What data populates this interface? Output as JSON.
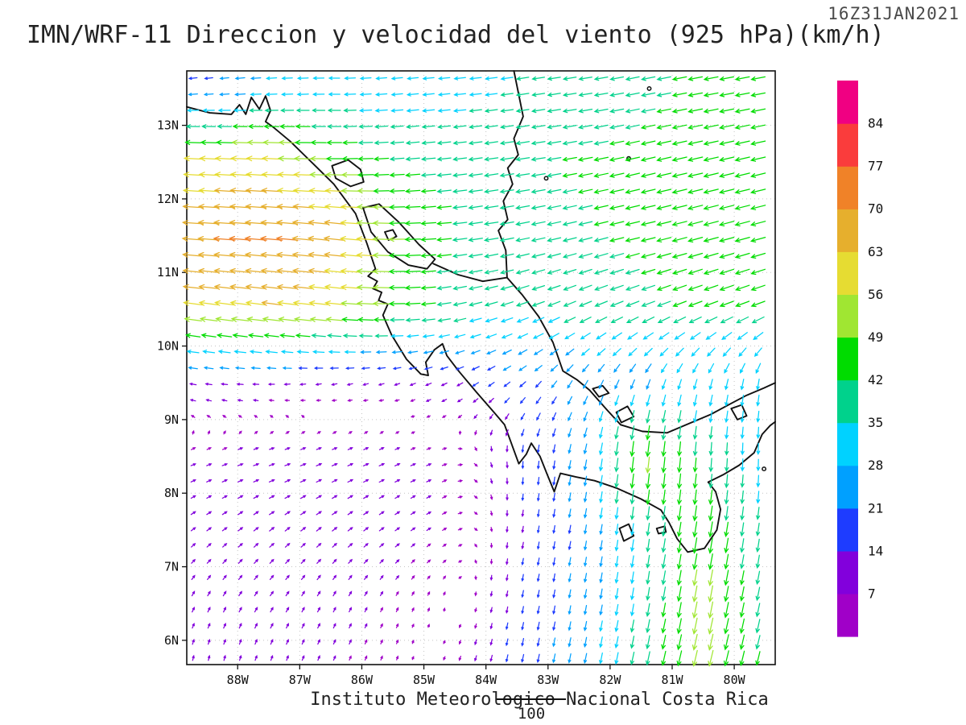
{
  "chart_data": {
    "type": "vector_field",
    "title": "IMN/WRF-11 Direccion y velocidad del viento (925 hPa)(km/h)",
    "timestamp": "16Z31JAN2021",
    "footer": "Instituto Meteorologico Nacional Costa Rica",
    "reference_label": "100",
    "units": "km/h",
    "level": "925 hPa",
    "lon_range": [
      -88.82,
      -79.34
    ],
    "lat_range": [
      5.67,
      13.74
    ],
    "x_ticks": {
      "labels": [
        "88W",
        "87W",
        "86W",
        "85W",
        "84W",
        "83W",
        "82W",
        "81W",
        "80W"
      ],
      "values": [
        -88,
        -87,
        -86,
        -85,
        -84,
        -83,
        -82,
        -81,
        -80
      ]
    },
    "y_ticks": {
      "labels": [
        "13N",
        "12N",
        "11N",
        "10N",
        "9N",
        "8N",
        "7N",
        "6N"
      ],
      "values": [
        13,
        12,
        11,
        10,
        9,
        8,
        7,
        6
      ]
    },
    "colorbar": {
      "levels": [
        7,
        14,
        21,
        28,
        35,
        42,
        49,
        56,
        63,
        70,
        77,
        84
      ],
      "colors": [
        "#a000c8",
        "#8200dc",
        "#1e3cff",
        "#00a0ff",
        "#00d2ff",
        "#00d28c",
        "#00dc00",
        "#a0e632",
        "#e6dc32",
        "#e6af2d",
        "#f08228",
        "#fa3c3c",
        "#f00082"
      ]
    },
    "grid": {
      "lons": [
        -88.5,
        -87.5,
        -86.5,
        -85.5,
        -84.5,
        -83.5,
        -82.5,
        -81.5,
        -80.5,
        -79.5
      ],
      "lats": [
        5.8,
        6.5,
        7.5,
        8.5,
        9.5,
        10.5,
        11.5,
        12.5,
        13.5
      ],
      "u": [
        [
          2,
          3,
          3,
          2,
          -2,
          -4,
          -5,
          -8,
          -12,
          -10
        ],
        [
          4,
          5,
          4,
          3,
          0,
          -3,
          -4,
          -6,
          -10,
          -8
        ],
        [
          8,
          9,
          9,
          8,
          5,
          -2,
          -4,
          -5,
          -8,
          -5
        ],
        [
          8,
          10,
          10,
          9,
          6,
          0,
          -5,
          -6,
          -3,
          0
        ],
        [
          -14,
          -12,
          -10,
          -10,
          -12,
          -15,
          -12,
          -10,
          -8,
          -5
        ],
        [
          -60,
          -62,
          -58,
          -48,
          -38,
          -35,
          -35,
          -38,
          -40,
          -40
        ],
        [
          -70,
          -72,
          -68,
          -50,
          -42,
          -40,
          -40,
          -42,
          -44,
          -44
        ],
        [
          -58,
          -60,
          -50,
          -42,
          -40,
          -40,
          -42,
          -42,
          -44,
          -44
        ],
        [
          -20,
          -28,
          -30,
          -30,
          -32,
          -35,
          -38,
          -40,
          -42,
          -42
        ]
      ],
      "v": [
        [
          8,
          8,
          7,
          5,
          -5,
          -18,
          -25,
          -38,
          -50,
          -40
        ],
        [
          8,
          8,
          8,
          6,
          2,
          -15,
          -22,
          -35,
          -52,
          -38
        ],
        [
          6,
          7,
          7,
          6,
          3,
          -12,
          -22,
          -35,
          -48,
          -35
        ],
        [
          3,
          3,
          4,
          4,
          2,
          -15,
          -25,
          -52,
          -40,
          -30
        ],
        [
          2,
          0,
          -2,
          -3,
          -6,
          -12,
          -20,
          -25,
          -28,
          -30
        ],
        [
          8,
          8,
          6,
          0,
          -8,
          -12,
          -15,
          -15,
          -15,
          -15
        ],
        [
          5,
          6,
          8,
          0,
          -5,
          -8,
          -10,
          -10,
          -12,
          -12
        ],
        [
          3,
          3,
          0,
          -3,
          -5,
          -6,
          -8,
          -10,
          -10,
          -10
        ],
        [
          -2,
          -2,
          0,
          -3,
          -3,
          -5,
          -6,
          -8,
          -8,
          -8
        ]
      ]
    },
    "coastlines": [
      {
        "closed": false,
        "points": [
          [
            -88.82,
            13.25
          ],
          [
            -88.45,
            13.17
          ],
          [
            -88.1,
            13.15
          ],
          [
            -87.97,
            13.28
          ],
          [
            -87.87,
            13.15
          ],
          [
            -87.78,
            13.38
          ],
          [
            -87.65,
            13.22
          ],
          [
            -87.55,
            13.4
          ],
          [
            -87.47,
            13.2
          ],
          [
            -87.55,
            13.05
          ],
          [
            -87.42,
            12.97
          ],
          [
            -87.15,
            12.78
          ],
          [
            -86.75,
            12.45
          ],
          [
            -86.45,
            12.2
          ],
          [
            -86.1,
            11.8
          ],
          [
            -85.92,
            11.4
          ],
          [
            -85.78,
            11.05
          ],
          [
            -85.9,
            10.95
          ],
          [
            -85.75,
            10.88
          ],
          [
            -85.82,
            10.78
          ],
          [
            -85.68,
            10.73
          ],
          [
            -85.73,
            10.62
          ],
          [
            -85.58,
            10.57
          ],
          [
            -85.66,
            10.42
          ],
          [
            -85.52,
            10.15
          ],
          [
            -85.28,
            9.82
          ],
          [
            -85.05,
            9.62
          ],
          [
            -84.93,
            9.6
          ],
          [
            -84.97,
            9.78
          ],
          [
            -84.83,
            9.95
          ],
          [
            -84.7,
            10.03
          ],
          [
            -84.63,
            9.87
          ],
          [
            -84.45,
            9.67
          ],
          [
            -84.15,
            9.37
          ],
          [
            -83.85,
            9.08
          ],
          [
            -83.7,
            8.93
          ],
          [
            -83.6,
            8.7
          ],
          [
            -83.47,
            8.4
          ],
          [
            -83.35,
            8.53
          ],
          [
            -83.27,
            8.68
          ],
          [
            -83.13,
            8.5
          ],
          [
            -83.02,
            8.27
          ],
          [
            -82.9,
            8.02
          ],
          [
            -82.8,
            8.27
          ],
          [
            -82.55,
            8.22
          ],
          [
            -82.25,
            8.17
          ],
          [
            -81.9,
            8.07
          ],
          [
            -81.5,
            7.92
          ],
          [
            -81.18,
            7.77
          ],
          [
            -81.05,
            7.6
          ],
          [
            -80.92,
            7.38
          ],
          [
            -80.75,
            7.2
          ],
          [
            -80.48,
            7.25
          ],
          [
            -80.28,
            7.5
          ],
          [
            -80.22,
            7.78
          ],
          [
            -80.3,
            8.02
          ],
          [
            -80.42,
            8.15
          ],
          [
            -80.18,
            8.25
          ],
          [
            -79.92,
            8.38
          ],
          [
            -79.68,
            8.55
          ],
          [
            -79.55,
            8.8
          ],
          [
            -79.42,
            8.92
          ],
          [
            -79.34,
            8.97
          ]
        ]
      },
      {
        "closed": false,
        "points": [
          [
            -83.55,
            13.74
          ],
          [
            -83.48,
            13.45
          ],
          [
            -83.4,
            13.12
          ],
          [
            -83.55,
            12.82
          ],
          [
            -83.48,
            12.6
          ],
          [
            -83.65,
            12.42
          ],
          [
            -83.57,
            12.2
          ],
          [
            -83.72,
            11.97
          ],
          [
            -83.65,
            11.72
          ],
          [
            -83.8,
            11.57
          ],
          [
            -83.68,
            11.3
          ],
          [
            -83.66,
            10.93
          ],
          [
            -83.42,
            10.7
          ],
          [
            -83.15,
            10.4
          ],
          [
            -82.92,
            10.05
          ],
          [
            -82.76,
            9.66
          ],
          [
            -82.53,
            9.54
          ],
          [
            -82.33,
            9.4
          ],
          [
            -82.08,
            9.16
          ],
          [
            -81.83,
            8.93
          ],
          [
            -81.48,
            8.84
          ],
          [
            -81.08,
            8.82
          ],
          [
            -80.72,
            8.95
          ],
          [
            -80.38,
            9.07
          ],
          [
            -80.05,
            9.22
          ],
          [
            -79.8,
            9.33
          ],
          [
            -79.52,
            9.43
          ],
          [
            -79.34,
            9.5
          ]
        ]
      },
      {
        "closed": false,
        "points": [
          [
            -84.85,
            11.12
          ],
          [
            -84.45,
            10.97
          ],
          [
            -84.05,
            10.88
          ],
          [
            -83.66,
            10.93
          ]
        ]
      },
      {
        "closed": true,
        "points": [
          [
            -85.98,
            11.88
          ],
          [
            -85.72,
            11.93
          ],
          [
            -85.4,
            11.68
          ],
          [
            -85.08,
            11.38
          ],
          [
            -84.82,
            11.18
          ],
          [
            -84.95,
            11.05
          ],
          [
            -85.25,
            11.1
          ],
          [
            -85.58,
            11.28
          ],
          [
            -85.85,
            11.55
          ]
        ]
      },
      {
        "closed": true,
        "points": [
          [
            -85.63,
            11.55
          ],
          [
            -85.5,
            11.58
          ],
          [
            -85.44,
            11.49
          ],
          [
            -85.57,
            11.44
          ]
        ]
      },
      {
        "closed": true,
        "points": [
          [
            -86.48,
            12.45
          ],
          [
            -86.22,
            12.53
          ],
          [
            -86.02,
            12.4
          ],
          [
            -85.97,
            12.23
          ],
          [
            -86.18,
            12.17
          ],
          [
            -86.42,
            12.28
          ]
        ]
      },
      {
        "closed": true,
        "points": [
          [
            -82.28,
            9.42
          ],
          [
            -82.12,
            9.46
          ],
          [
            -82.02,
            9.36
          ],
          [
            -82.18,
            9.31
          ]
        ]
      },
      {
        "closed": true,
        "points": [
          [
            -81.9,
            9.1
          ],
          [
            -81.72,
            9.18
          ],
          [
            -81.62,
            9.04
          ],
          [
            -81.82,
            8.96
          ]
        ]
      },
      {
        "closed": true,
        "points": [
          [
            -81.85,
            7.52
          ],
          [
            -81.7,
            7.58
          ],
          [
            -81.62,
            7.42
          ],
          [
            -81.78,
            7.35
          ]
        ]
      },
      {
        "closed": true,
        "points": [
          [
            -81.25,
            7.52
          ],
          [
            -81.12,
            7.55
          ],
          [
            -81.1,
            7.47
          ],
          [
            -81.22,
            7.45
          ]
        ]
      },
      {
        "closed": true,
        "points": [
          [
            -80.05,
            9.15
          ],
          [
            -79.88,
            9.2
          ],
          [
            -79.8,
            9.05
          ],
          [
            -79.95,
            9.0
          ]
        ]
      }
    ],
    "islets": [
      [
        -79.52,
        8.33
      ],
      [
        -81.7,
        12.55
      ],
      [
        -81.37,
        13.5
      ],
      [
        -83.03,
        12.28
      ]
    ]
  }
}
